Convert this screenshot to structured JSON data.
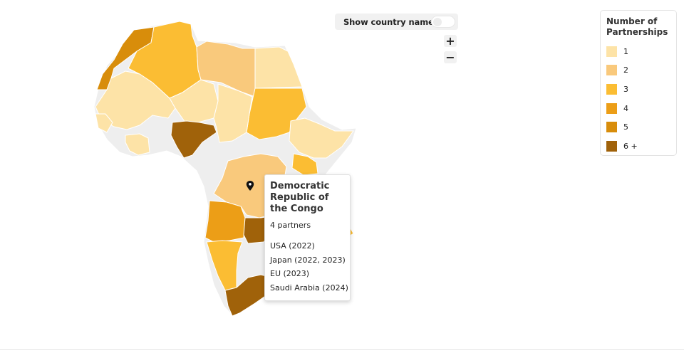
{
  "legend": {
    "title": "Number of Partnerships",
    "items": [
      {
        "label": "1",
        "color": "#fde3a7"
      },
      {
        "label": "2",
        "color": "#f9c97c"
      },
      {
        "label": "3",
        "color": "#fbbd33"
      },
      {
        "label": "4",
        "color": "#ec9e17"
      },
      {
        "label": "5",
        "color": "#d88d0b"
      },
      {
        "label": "6 +",
        "color": "#a0620a"
      }
    ]
  },
  "controls": {
    "show_names_label": "Show country names",
    "show_names_on": false,
    "zoom_in": "+",
    "zoom_out": "−"
  },
  "tooltip": {
    "country": "Democratic Republic of the Congo",
    "count_text": "4 partners",
    "partners": [
      "USA (2022)",
      "Japan (2022, 2023)",
      "EU (2023)",
      "Saudi Arabia (2024)"
    ]
  },
  "map": {
    "no_data_color": "#eeeeee",
    "border_color": "#ffffff"
  }
}
